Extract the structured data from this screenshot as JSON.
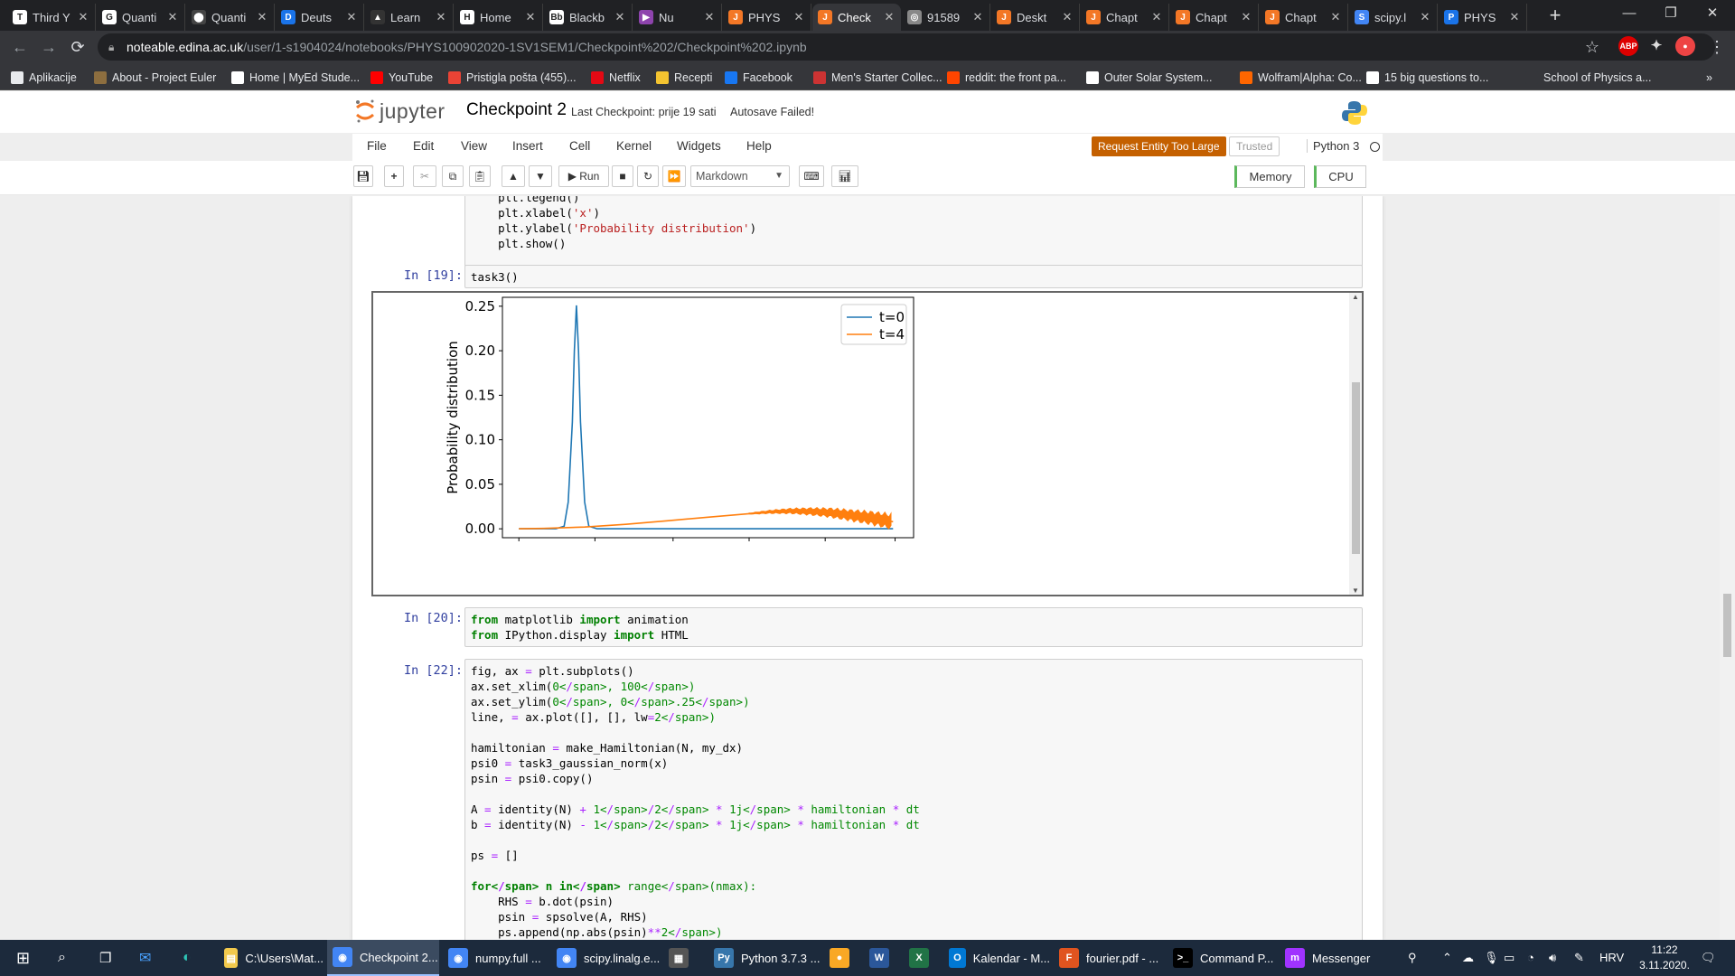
{
  "browser": {
    "tabs": [
      {
        "title": "Third Y",
        "icon": "T",
        "color": "#ffffff"
      },
      {
        "title": "Quanti",
        "icon": "G",
        "color": "#ffffff"
      },
      {
        "title": "Quanti",
        "icon": "⬤",
        "color": "#444444"
      },
      {
        "title": "Deuts",
        "icon": "D",
        "color": "#1a73e8"
      },
      {
        "title": "Learn",
        "icon": "▲",
        "color": "#333333"
      },
      {
        "title": "Home",
        "icon": "H",
        "color": "#ffffff"
      },
      {
        "title": "Blackb",
        "icon": "Bb",
        "color": "#ffffff"
      },
      {
        "title": "Nu",
        "icon": "▶",
        "color": "#8e44ad"
      },
      {
        "title": "PHYS",
        "icon": "J",
        "color": "#f37726"
      },
      {
        "title": "Check",
        "icon": "J",
        "color": "#f37726"
      },
      {
        "title": "91589",
        "icon": "◎",
        "color": "#888888"
      },
      {
        "title": "Deskt",
        "icon": "J",
        "color": "#f37726"
      },
      {
        "title": "Chapt",
        "icon": "J",
        "color": "#f37726"
      },
      {
        "title": "Chapt",
        "icon": "J",
        "color": "#f37726"
      },
      {
        "title": "Chapt",
        "icon": "J",
        "color": "#f37726"
      },
      {
        "title": "scipy.l",
        "icon": "S",
        "color": "#4285f4"
      },
      {
        "title": "PHYS",
        "icon": "P",
        "color": "#1a73e8"
      }
    ],
    "url_host": "noteable.edina.ac.uk",
    "url_path": "/user/1-s1904024/notebooks/PHYS100902020-1SV1SEM1/Checkpoint%202/Checkpoint%202.ipynb",
    "bookmarks": [
      {
        "label": "Aplikacije",
        "color": "#e8eaed"
      },
      {
        "label": "About - Project Euler",
        "color": "#8d6e3f"
      },
      {
        "label": "Home | MyEd Stude...",
        "color": "#ffffff"
      },
      {
        "label": "YouTube",
        "color": "#ff0000"
      },
      {
        "label": "Pristigla pošta (455)...",
        "color": "#ea4335"
      },
      {
        "label": "Netflix",
        "color": "#e50914"
      },
      {
        "label": "Recepti",
        "color": "#f4c430"
      },
      {
        "label": "Facebook",
        "color": "#1877f2"
      },
      {
        "label": "Men's Starter Collec...",
        "color": "#cc3333"
      },
      {
        "label": "reddit: the front pa...",
        "color": "#ff4500"
      },
      {
        "label": "Outer Solar System...",
        "color": "#ffffff"
      },
      {
        "label": "Wolfram|Alpha: Co...",
        "color": "#ff6600"
      },
      {
        "label": "15 big questions to...",
        "color": "#ffffff"
      },
      {
        "label": "School of Physics a...",
        "color": "#35363a"
      }
    ]
  },
  "jupyter": {
    "logo_text": "jupyter",
    "notebook_name": "Checkpoint 2",
    "checkpoint": "Last Checkpoint: prije 19 sati",
    "autosave": "Autosave Failed!",
    "menus": [
      "File",
      "Edit",
      "View",
      "Insert",
      "Cell",
      "Kernel",
      "Widgets",
      "Help"
    ],
    "error_badge": "Request Entity Too Large",
    "trusted": "Trusted",
    "kernel": "Python 3",
    "run_label": "Run",
    "cell_type": "Markdown",
    "memory": "Memory",
    "cpu": "CPU"
  },
  "cells": {
    "cell_top": [
      "    plt.legend()",
      "    plt.xlabel('x')",
      "    plt.ylabel('Probability distribution')",
      "    plt.show()"
    ],
    "cell19_prompt": "In [19]:",
    "cell19_code": "task3()",
    "cell20_prompt": "In [20]:",
    "cell20_code": [
      "from matplotlib import animation",
      "from IPython.display import HTML"
    ],
    "cell22_prompt": "In [22]:",
    "cell22_code": [
      "fig, ax = plt.subplots()",
      "ax.set_xlim(0, 100)",
      "ax.set_ylim(0, 0.25)",
      "line, = ax.plot([], [], lw=2)",
      "",
      "hamiltonian = make_Hamiltonian(N, my_dx)",
      "psi0 = task3_gaussian_norm(x)",
      "psin = psi0.copy()",
      "",
      "A = identity(N) + 1/2 * 1j * hamiltonian * dt",
      "b = identity(N) - 1/2 * 1j * hamiltonian * dt",
      "",
      "ps = []",
      "",
      "for n in range(nmax):",
      "    RHS = b.dot(psin)",
      "    psin = spsolve(A, RHS)",
      "    ps.append(np.abs(psin)**2)"
    ]
  },
  "chart_data": {
    "type": "line",
    "title": "",
    "xlabel": "",
    "ylabel": "Probability distribution",
    "xlim": [
      0,
      1
    ],
    "ylim": [
      -0.01,
      0.26
    ],
    "yticks": [
      "0.00",
      "0.05",
      "0.10",
      "0.15",
      "0.20",
      "0.25"
    ],
    "xtick_labels_visible": false,
    "legend_position": "top-right",
    "series": [
      {
        "name": "t=0",
        "color": "#1f77b4",
        "x": [
          0.04,
          0.1,
          0.13,
          0.15,
          0.16,
          0.17,
          0.175,
          0.18,
          0.185,
          0.19,
          0.2,
          0.21,
          0.23,
          0.3,
          0.5,
          0.7,
          0.95
        ],
        "y": [
          0.0,
          0.0,
          0.0,
          0.003,
          0.03,
          0.12,
          0.2,
          0.251,
          0.2,
          0.12,
          0.03,
          0.003,
          0.0,
          0.0,
          0.0,
          0.0,
          0.0
        ]
      },
      {
        "name": "t=4",
        "color": "#ff7f0e",
        "x": [
          0.04,
          0.1,
          0.2,
          0.3,
          0.4,
          0.5,
          0.6,
          0.65,
          0.7,
          0.75,
          0.8,
          0.85,
          0.9,
          0.95
        ],
        "y": [
          0.0,
          0.0005,
          0.002,
          0.005,
          0.009,
          0.013,
          0.017,
          0.019,
          0.02,
          0.0195,
          0.018,
          0.015,
          0.012,
          0.008
        ]
      }
    ]
  },
  "taskbar": {
    "items": [
      {
        "label": "C:\\Users\\Mat...",
        "color": "#f2c94c",
        "icon": "▤"
      },
      {
        "label": "Checkpoint 2...",
        "color": "#4285f4",
        "icon": "◉"
      },
      {
        "label": "numpy.full ...",
        "color": "#4285f4",
        "icon": "◉"
      },
      {
        "label": "scipy.linalg.e...",
        "color": "#4285f4",
        "icon": "◉"
      },
      {
        "label": "",
        "color": "#555555",
        "icon": "▦"
      },
      {
        "label": "Python 3.7.3 ...",
        "color": "#3776ab",
        "icon": "Py"
      },
      {
        "label": "",
        "color": "#f9a825",
        "icon": "●"
      },
      {
        "label": "",
        "color": "#2b579a",
        "icon": "W"
      },
      {
        "label": "",
        "color": "#217346",
        "icon": "X"
      },
      {
        "label": "Kalendar - M...",
        "color": "#0078d4",
        "icon": "O"
      },
      {
        "label": "fourier.pdf - ...",
        "color": "#e0541f",
        "icon": "F"
      },
      {
        "label": "Command P...",
        "color": "#000000",
        "icon": ">_"
      },
      {
        "label": "Messenger",
        "color": "#a033ff",
        "icon": "m"
      }
    ],
    "lang": "HRV",
    "time": "11:22",
    "date": "3.11.2020."
  }
}
